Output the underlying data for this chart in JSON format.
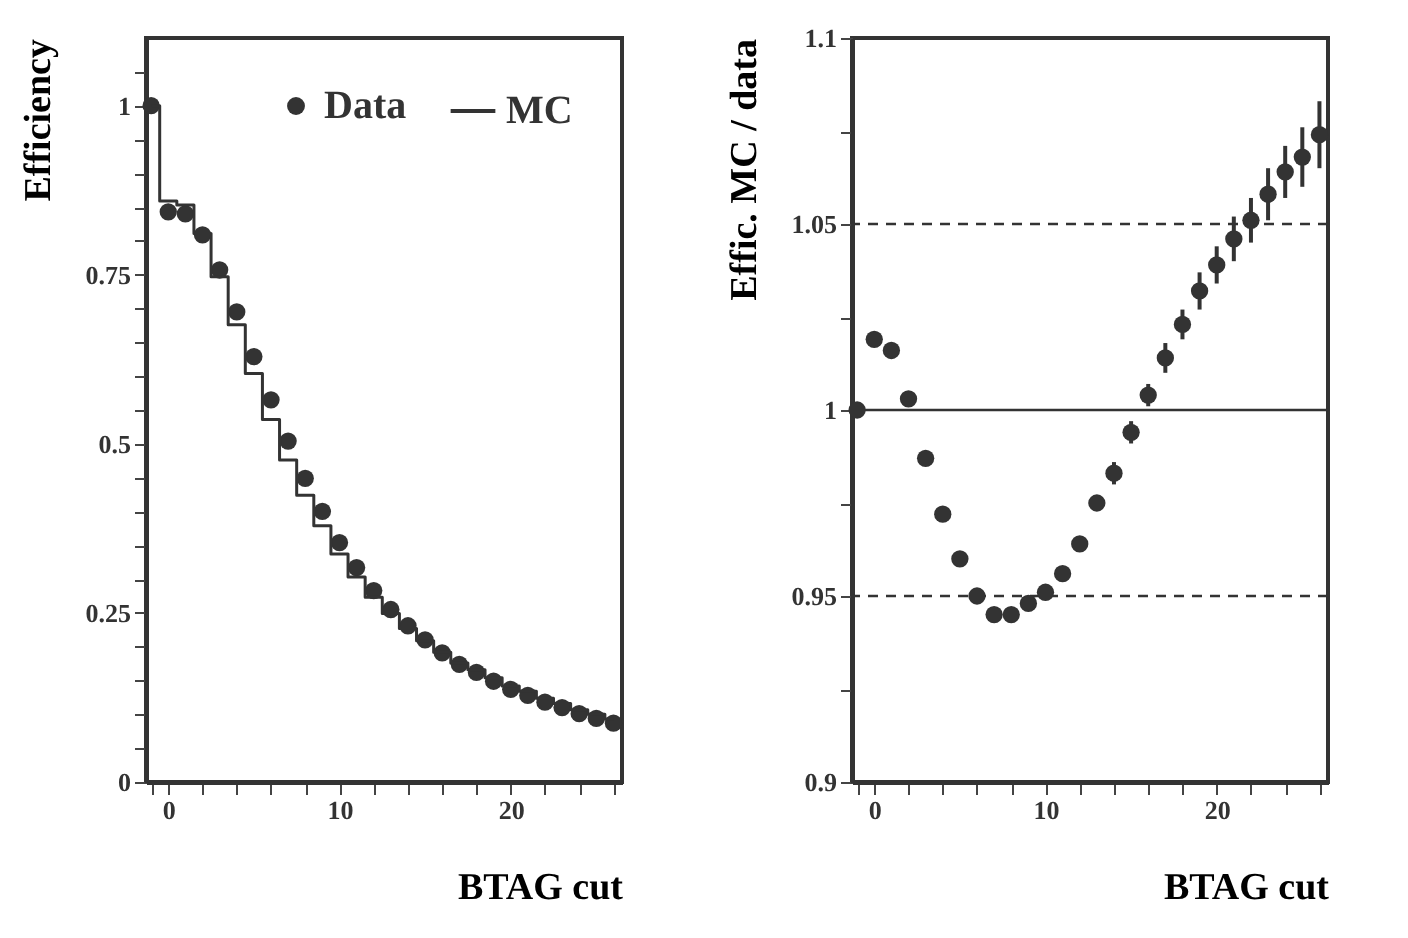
{
  "chart_data": [
    {
      "type": "scatter",
      "xlabel": "BTAG cut",
      "ylabel": "Efficiency",
      "xlim": [
        -1.3,
        26.5
      ],
      "ylim": [
        0,
        1.1
      ],
      "xticks": [
        {
          "value": -1,
          "label": null
        },
        0,
        {
          "value": 2,
          "label": null
        },
        {
          "value": 4,
          "label": null
        },
        {
          "value": 6,
          "label": null
        },
        {
          "value": 8,
          "label": null
        },
        10,
        {
          "value": 12,
          "label": null
        },
        {
          "value": 14,
          "label": null
        },
        {
          "value": 16,
          "label": null
        },
        {
          "value": 18,
          "label": null
        },
        20,
        {
          "value": 22,
          "label": null
        },
        {
          "value": 24,
          "label": null
        },
        {
          "value": 26,
          "label": null
        }
      ],
      "yticks": [
        0,
        {
          "value": 0.05,
          "label": null
        },
        {
          "value": 0.1,
          "label": null
        },
        {
          "value": 0.15,
          "label": null
        },
        {
          "value": 0.2,
          "label": null
        },
        0.25,
        {
          "value": 0.3,
          "label": null
        },
        {
          "value": 0.35,
          "label": null
        },
        {
          "value": 0.4,
          "label": null
        },
        {
          "value": 0.45,
          "label": null
        },
        0.5,
        {
          "value": 0.55,
          "label": null
        },
        {
          "value": 0.6,
          "label": null
        },
        {
          "value": 0.65,
          "label": null
        },
        {
          "value": 0.7,
          "label": null
        },
        0.75,
        {
          "value": 0.8,
          "label": null
        },
        {
          "value": 0.85,
          "label": null
        },
        {
          "value": 0.9,
          "label": null
        },
        {
          "value": 0.95,
          "label": null
        },
        1,
        {
          "value": 1.05,
          "label": null
        }
      ],
      "x": [
        -1,
        0,
        1,
        2,
        3,
        4,
        5,
        6,
        7,
        8,
        9,
        10,
        11,
        12,
        13,
        14,
        15,
        16,
        17,
        18,
        19,
        20,
        21,
        22,
        23,
        24,
        25,
        26
      ],
      "series": [
        {
          "name": "Data",
          "marker": "circle",
          "color": "#333333",
          "values": [
            1.0,
            0.843,
            0.84,
            0.809,
            0.757,
            0.695,
            0.629,
            0.565,
            0.504,
            0.449,
            0.4,
            0.354,
            0.317,
            0.283,
            0.255,
            0.231,
            0.21,
            0.191,
            0.174,
            0.162,
            0.149,
            0.137,
            0.128,
            0.118,
            0.11,
            0.101,
            0.094,
            0.087
          ]
        },
        {
          "name": "MC",
          "type": "step",
          "marker": "none",
          "color": "#333333",
          "values": [
            1.0,
            0.859,
            0.853,
            0.811,
            0.747,
            0.676,
            0.604,
            0.536,
            0.476,
            0.424,
            0.379,
            0.337,
            0.303,
            0.273,
            0.249,
            0.227,
            0.209,
            0.192,
            0.176,
            0.166,
            0.154,
            0.142,
            0.134,
            0.124,
            0.116,
            0.107,
            0.1,
            0.093
          ]
        }
      ],
      "legend": "top right",
      "line_style": "solid",
      "grid": false
    },
    {
      "type": "scatter",
      "xlabel": "BTAG cut",
      "ylabel": "Effic.  MC / data",
      "xlim": [
        -1.3,
        26.5
      ],
      "ylim": [
        0.9,
        1.1
      ],
      "xticks": [
        {
          "value": -1,
          "label": null
        },
        0,
        {
          "value": 2,
          "label": null
        },
        {
          "value": 4,
          "label": null
        },
        {
          "value": 6,
          "label": null
        },
        {
          "value": 8,
          "label": null
        },
        10,
        {
          "value": 12,
          "label": null
        },
        {
          "value": 14,
          "label": null
        },
        {
          "value": 16,
          "label": null
        },
        {
          "value": 18,
          "label": null
        },
        20,
        {
          "value": 22,
          "label": null
        },
        {
          "value": 24,
          "label": null
        },
        {
          "value": 26,
          "label": null
        }
      ],
      "yticks": [
        0.9,
        {
          "value": 0.925,
          "label": null
        },
        0.95,
        {
          "value": 0.975,
          "label": null
        },
        1,
        {
          "value": 1.025,
          "label": null
        },
        1.05,
        {
          "value": 1.075,
          "label": null
        },
        1.1
      ],
      "x": [
        -1,
        0,
        1,
        2,
        3,
        4,
        5,
        6,
        7,
        8,
        9,
        10,
        11,
        12,
        13,
        14,
        15,
        16,
        17,
        18,
        19,
        20,
        21,
        22,
        23,
        24,
        25,
        26
      ],
      "series": [
        {
          "color": "#333333",
          "values": [
            1.0,
            1.019,
            1.016,
            1.003,
            0.987,
            0.972,
            0.96,
            0.95,
            0.945,
            0.945,
            0.948,
            0.951,
            0.956,
            0.964,
            0.975,
            0.983,
            0.994,
            1.004,
            1.014,
            1.023,
            1.032,
            1.039,
            1.046,
            1.051,
            1.058,
            1.064,
            1.068,
            1.074
          ],
          "errors": [
            null,
            null,
            null,
            null,
            null,
            null,
            null,
            null,
            null,
            null,
            null,
            null,
            null,
            0.002,
            0.002,
            0.003,
            0.003,
            0.003,
            0.004,
            0.004,
            0.005,
            0.005,
            0.006,
            0.006,
            0.007,
            0.007,
            0.008,
            0.009
          ]
        }
      ],
      "ref_lines": [
        {
          "axis": "y",
          "value": 1.05,
          "line_style": "dashed"
        },
        {
          "axis": "y",
          "value": 1,
          "line_style": "solid"
        },
        {
          "axis": "y",
          "value": 0.95,
          "line_style": "dashed"
        }
      ],
      "marker": "circle",
      "grid": false
    }
  ]
}
